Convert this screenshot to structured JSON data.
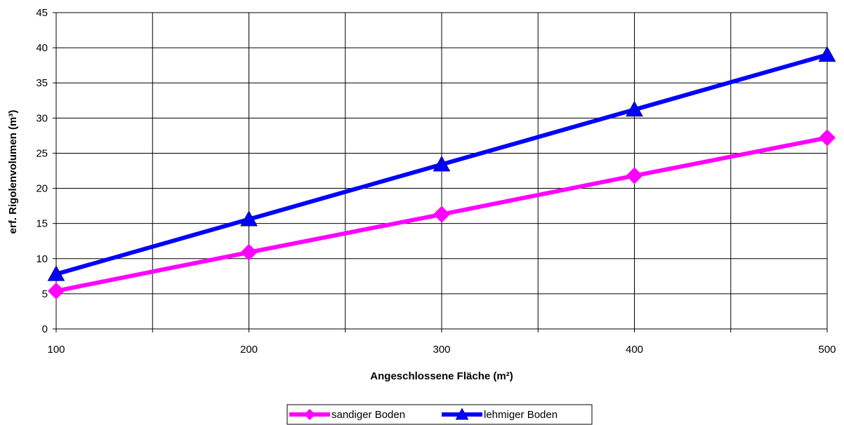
{
  "chart_data": {
    "type": "line",
    "title": "",
    "xlabel": "Angeschlossene Fläche (m²)",
    "ylabel": "erf. Rigolenvolumen (m³)",
    "x": [
      100,
      200,
      300,
      400,
      500
    ],
    "xlim": [
      100,
      500
    ],
    "ylim": [
      0,
      45
    ],
    "x_ticks": [
      "100",
      "200",
      "300",
      "400",
      "500"
    ],
    "y_ticks": [
      "0",
      "5",
      "10",
      "15",
      "20",
      "25",
      "30",
      "35",
      "40",
      "45"
    ],
    "grid": true,
    "legend_position": "bottom",
    "series": [
      {
        "name": "sandiger Boden",
        "values": [
          5.4,
          10.9,
          16.3,
          21.8,
          27.2
        ],
        "color": "#FF00FF",
        "marker": "diamond"
      },
      {
        "name": "lehmiger Boden",
        "values": [
          7.8,
          15.6,
          23.4,
          31.2,
          39.0
        ],
        "color": "#0000FF",
        "marker": "triangle"
      }
    ]
  }
}
